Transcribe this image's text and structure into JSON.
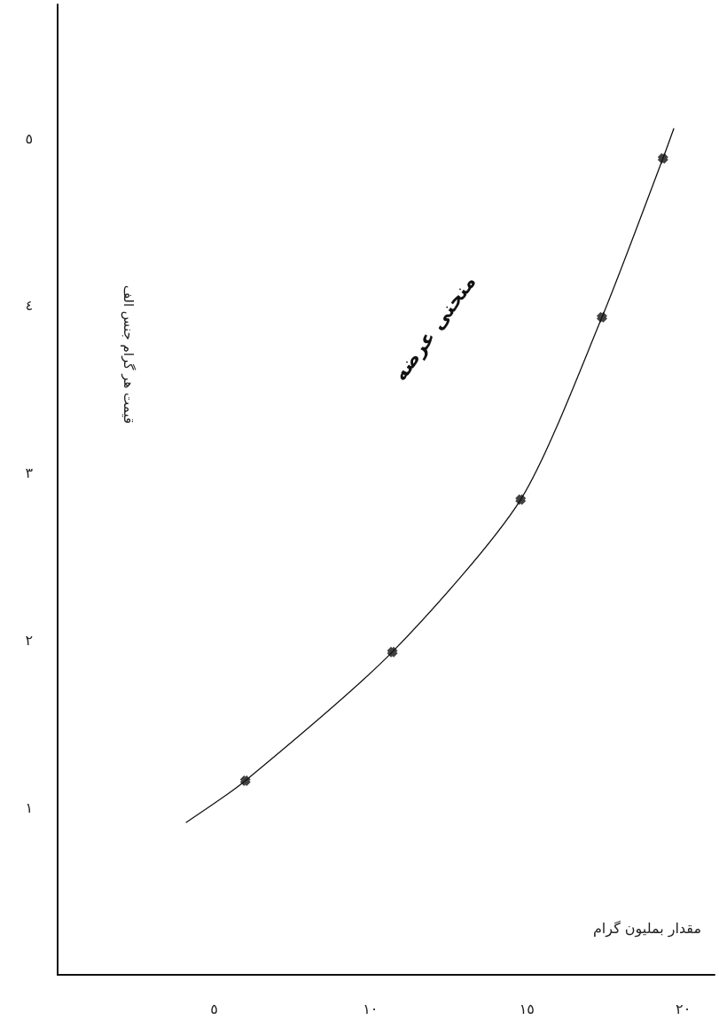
{
  "chart_data": {
    "type": "line",
    "xlabel": "مقدار بمليون گرام",
    "ylabel": "قیمت هر گرام جنس الف",
    "annotations": [
      "منحنی عرضه"
    ],
    "series": [
      {
        "color": "#111111",
        "marker": "none",
        "x": [
          4.1,
          6.0,
          10.7,
          14.8,
          17.4,
          19.35,
          19.7
        ],
        "values": [
          0.91,
          1.16,
          1.93,
          2.84,
          3.93,
          4.88,
          5.06
        ]
      },
      {
        "type": "scatter",
        "color": "#111111",
        "marker": "cross",
        "x": [
          6.0,
          10.7,
          14.8,
          17.4,
          19.35
        ],
        "values": [
          1.16,
          1.93,
          2.84,
          3.93,
          4.88
        ]
      }
    ],
    "xlim": [
      0,
      21
    ],
    "ylim": [
      0,
      5.8
    ],
    "xticks": [
      {
        "value": 5,
        "label": "٥"
      },
      {
        "value": 10,
        "label": "١٠"
      },
      {
        "value": 15,
        "label": "١٥"
      },
      {
        "value": 20,
        "label": "٢٠"
      }
    ],
    "yticks": [
      {
        "value": 1,
        "label": "١"
      },
      {
        "value": 2,
        "label": "٢"
      },
      {
        "value": 3,
        "label": "٣"
      },
      {
        "value": 4,
        "label": "٤"
      },
      {
        "value": 5,
        "label": "٥"
      }
    ],
    "grid": false
  }
}
